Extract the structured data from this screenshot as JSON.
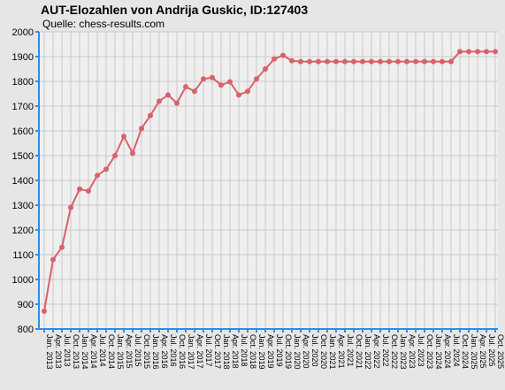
{
  "chart_data": {
    "type": "line",
    "title": "AUT-Elozahlen von Andrija Guskic, ID:127403",
    "subtitle": "Quelle: chess-results.com",
    "xlabel": "",
    "ylabel": "",
    "ylim": [
      800,
      2000
    ],
    "yticks": [
      800,
      900,
      1000,
      1100,
      1200,
      1300,
      1400,
      1500,
      1600,
      1700,
      1800,
      1900,
      2000
    ],
    "grid": true,
    "categories": [
      "Jan. 2013",
      "Apr. 2013",
      "Jul. 2013",
      "Oct. 2013",
      "Jan. 2014",
      "Apr. 2014",
      "Jul. 2014",
      "Oct. 2014",
      "Jan. 2015",
      "Apr. 2015",
      "Jul. 2015",
      "Oct. 2015",
      "Jan. 2016",
      "Apr. 2016",
      "Jul. 2016",
      "Oct. 2016",
      "Jan. 2017",
      "Apr. 2017",
      "Jul. 2017",
      "Oct. 2017",
      "Jan. 2018",
      "Apr. 2018",
      "Jul. 2018",
      "Oct. 2018",
      "Jan. 2019",
      "Apr. 2019",
      "Jul. 2019",
      "Oct. 2019",
      "Jan. 2020",
      "Apr. 2020",
      "Jul. 2020",
      "Oct. 2020",
      "Jan. 2021",
      "Apr. 2021",
      "Jul. 2021",
      "Oct. 2021",
      "Jan. 2022",
      "Apr. 2022",
      "Jul. 2022",
      "Oct. 2022",
      "Jan. 2023",
      "Apr. 2023",
      "Jul. 2023",
      "Oct. 2023",
      "Jan. 2024",
      "Apr. 2024",
      "Jul. 2024",
      "Oct. 2024",
      "Jan. 2025",
      "Apr. 2025",
      "Jul. 2025",
      "Oct. 2025"
    ],
    "series": [
      {
        "values": [
          872,
          1080,
          1130,
          1290,
          1365,
          1357,
          1420,
          1445,
          1500,
          1578,
          1510,
          1610,
          1662,
          1720,
          1745,
          1712,
          1778,
          1760,
          1810,
          1815,
          1785,
          1798,
          1745,
          1760,
          1810,
          1850,
          1890,
          1905,
          1883,
          1880,
          1880,
          1880,
          1880,
          1880,
          1880,
          1880,
          1880,
          1880,
          1880,
          1880,
          1880,
          1880,
          1880,
          1880,
          1880,
          1880,
          1880,
          1920,
          1920,
          1920,
          1920,
          1920
        ],
        "color": "#d9616a"
      }
    ],
    "colors": {
      "background": "#e6e6e6",
      "plot_background": "#efefef",
      "grid": "#c8c8c8",
      "axis": "#2a8fe8",
      "line": "#d9616a"
    }
  }
}
